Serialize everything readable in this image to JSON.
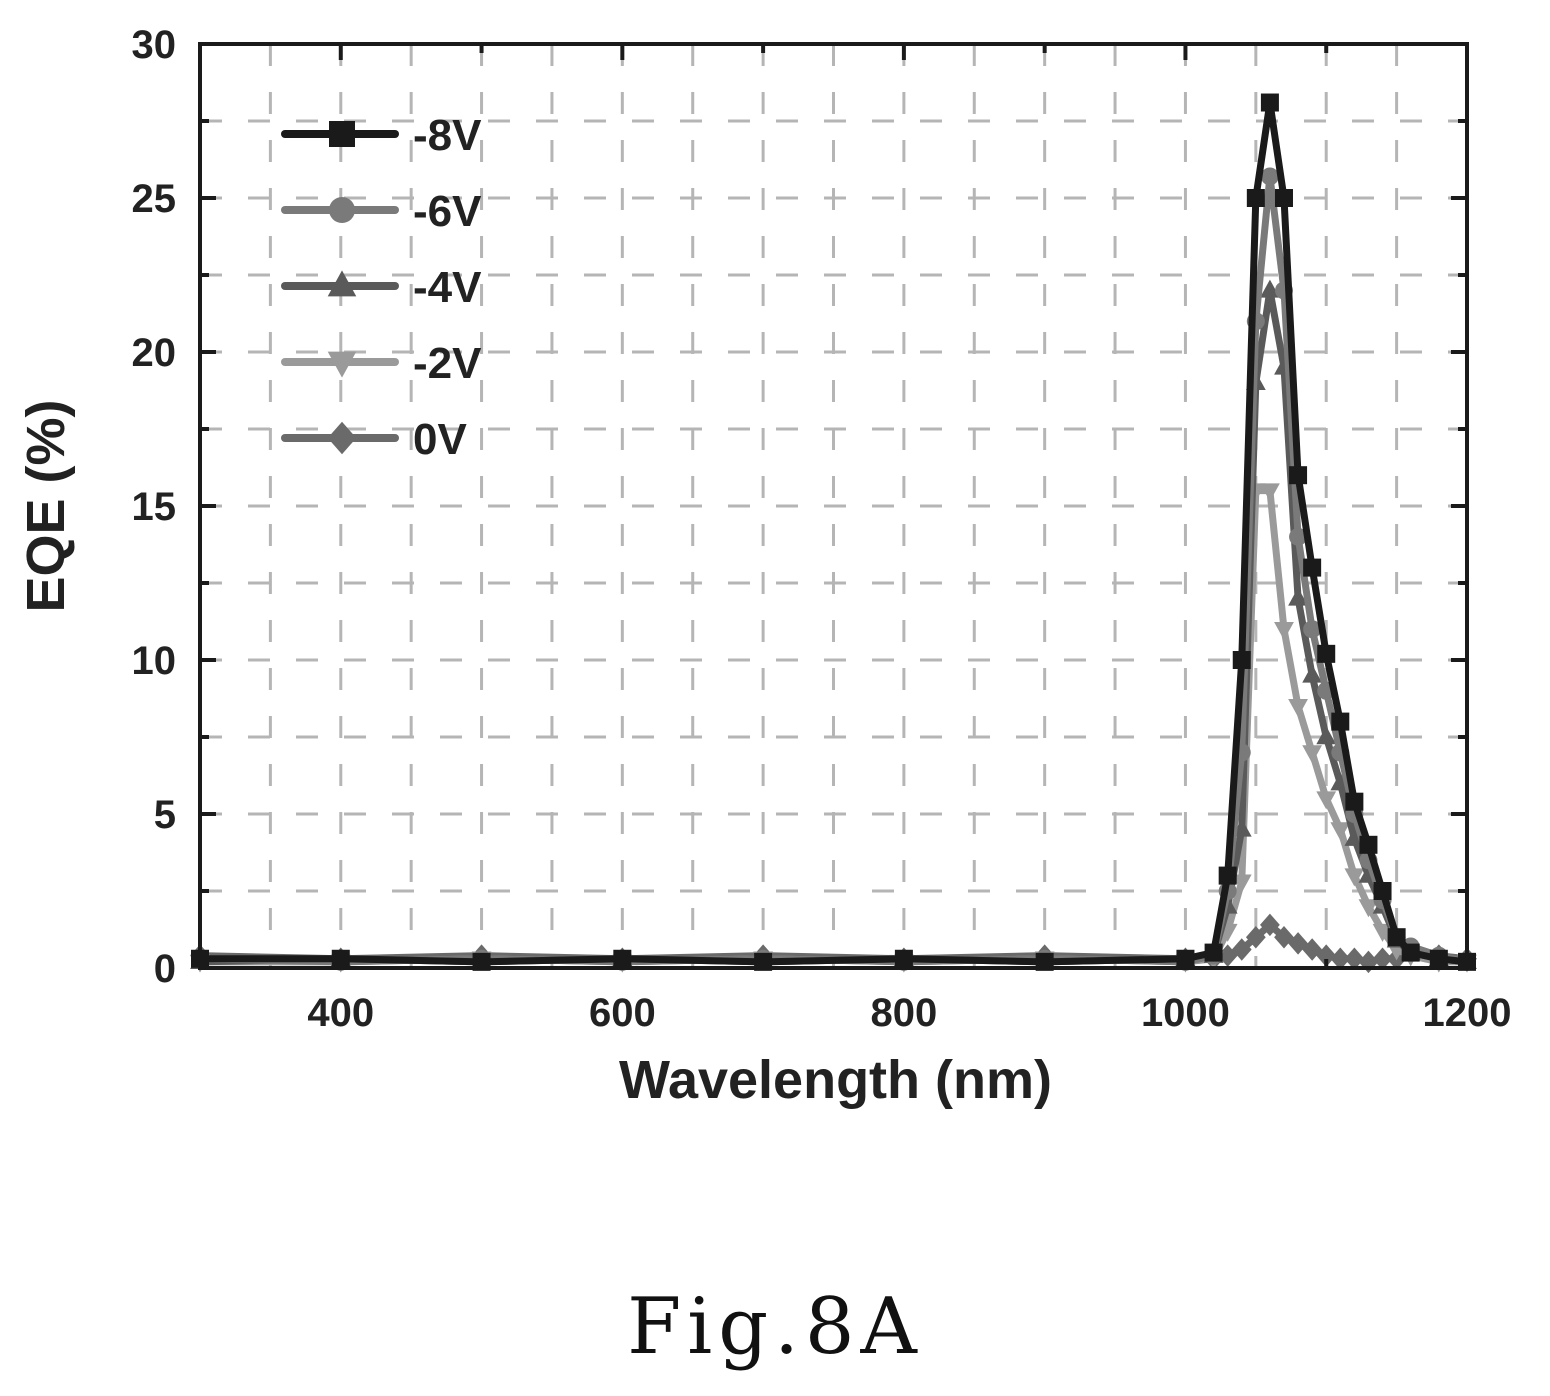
{
  "caption": "Fig.8A",
  "chart_data": {
    "type": "line",
    "title": "",
    "xlabel": "Wavelength (nm)",
    "ylabel": "EQE (%)",
    "xlim": [
      300,
      1200
    ],
    "ylim": [
      0,
      30
    ],
    "xticks": [
      400,
      600,
      800,
      1000,
      1200
    ],
    "yticks": [
      0,
      5,
      10,
      15,
      20,
      25,
      30
    ],
    "grid": true,
    "legend_position": "top-left",
    "series": [
      {
        "name": "-8V",
        "marker": "square",
        "color": "#1a1a1a",
        "x": [
          300,
          400,
          500,
          600,
          700,
          800,
          900,
          1000,
          1020,
          1030,
          1040,
          1050,
          1060,
          1070,
          1080,
          1090,
          1100,
          1110,
          1120,
          1130,
          1140,
          1150,
          1160,
          1180,
          1200
        ],
        "y": [
          0.3,
          0.3,
          0.2,
          0.3,
          0.2,
          0.3,
          0.2,
          0.3,
          0.5,
          3.0,
          10.0,
          25.0,
          28.1,
          25.0,
          16.0,
          13.0,
          10.2,
          8.0,
          5.4,
          4.0,
          2.5,
          1.0,
          0.5,
          0.3,
          0.2
        ]
      },
      {
        "name": "-6V",
        "marker": "circle",
        "color": "#7a7a7a",
        "x": [
          300,
          400,
          500,
          600,
          700,
          800,
          900,
          1000,
          1020,
          1030,
          1040,
          1050,
          1060,
          1070,
          1080,
          1090,
          1100,
          1110,
          1120,
          1130,
          1140,
          1150,
          1160,
          1180,
          1200
        ],
        "y": [
          0.3,
          0.2,
          0.3,
          0.2,
          0.3,
          0.2,
          0.3,
          0.2,
          0.4,
          2.5,
          7.0,
          21.0,
          25.7,
          22.0,
          14.0,
          11.0,
          9.0,
          7.0,
          5.0,
          3.5,
          2.2,
          1.0,
          0.7,
          0.4,
          0.2
        ]
      },
      {
        "name": "-4V",
        "marker": "triangle-up",
        "color": "#5a5a5a",
        "x": [
          300,
          400,
          500,
          600,
          700,
          800,
          900,
          1000,
          1020,
          1030,
          1040,
          1050,
          1060,
          1070,
          1080,
          1090,
          1100,
          1110,
          1120,
          1130,
          1140,
          1150,
          1160,
          1180,
          1200
        ],
        "y": [
          0.2,
          0.3,
          0.2,
          0.3,
          0.2,
          0.3,
          0.2,
          0.3,
          0.4,
          2.0,
          4.5,
          19.0,
          22.0,
          19.5,
          12.0,
          9.5,
          7.5,
          6.0,
          4.2,
          3.0,
          2.0,
          0.9,
          0.5,
          0.3,
          0.2
        ]
      },
      {
        "name": "-2V",
        "marker": "triangle-down",
        "color": "#9a9a9a",
        "x": [
          300,
          400,
          500,
          600,
          700,
          800,
          900,
          1000,
          1020,
          1030,
          1040,
          1050,
          1060,
          1070,
          1080,
          1090,
          1100,
          1110,
          1120,
          1130,
          1140,
          1150,
          1160,
          1180,
          1200
        ],
        "y": [
          0.2,
          0.2,
          0.3,
          0.2,
          0.3,
          0.2,
          0.3,
          0.2,
          0.3,
          1.2,
          2.8,
          15.5,
          15.5,
          11.0,
          8.5,
          7.0,
          5.5,
          4.5,
          3.0,
          2.0,
          1.2,
          0.6,
          0.4,
          0.2,
          0.2
        ]
      },
      {
        "name": "0V",
        "marker": "diamond",
        "color": "#6a6a6a",
        "x": [
          300,
          400,
          500,
          600,
          700,
          800,
          900,
          1000,
          1020,
          1030,
          1040,
          1050,
          1060,
          1070,
          1080,
          1090,
          1100,
          1110,
          1120,
          1130,
          1140,
          1150,
          1160,
          1180,
          1200
        ],
        "y": [
          0.4,
          0.3,
          0.4,
          0.3,
          0.4,
          0.3,
          0.4,
          0.3,
          0.3,
          0.4,
          0.6,
          1.0,
          1.4,
          1.0,
          0.8,
          0.6,
          0.4,
          0.3,
          0.3,
          0.2,
          0.3,
          0.3,
          0.5,
          0.4,
          0.3
        ]
      }
    ]
  }
}
